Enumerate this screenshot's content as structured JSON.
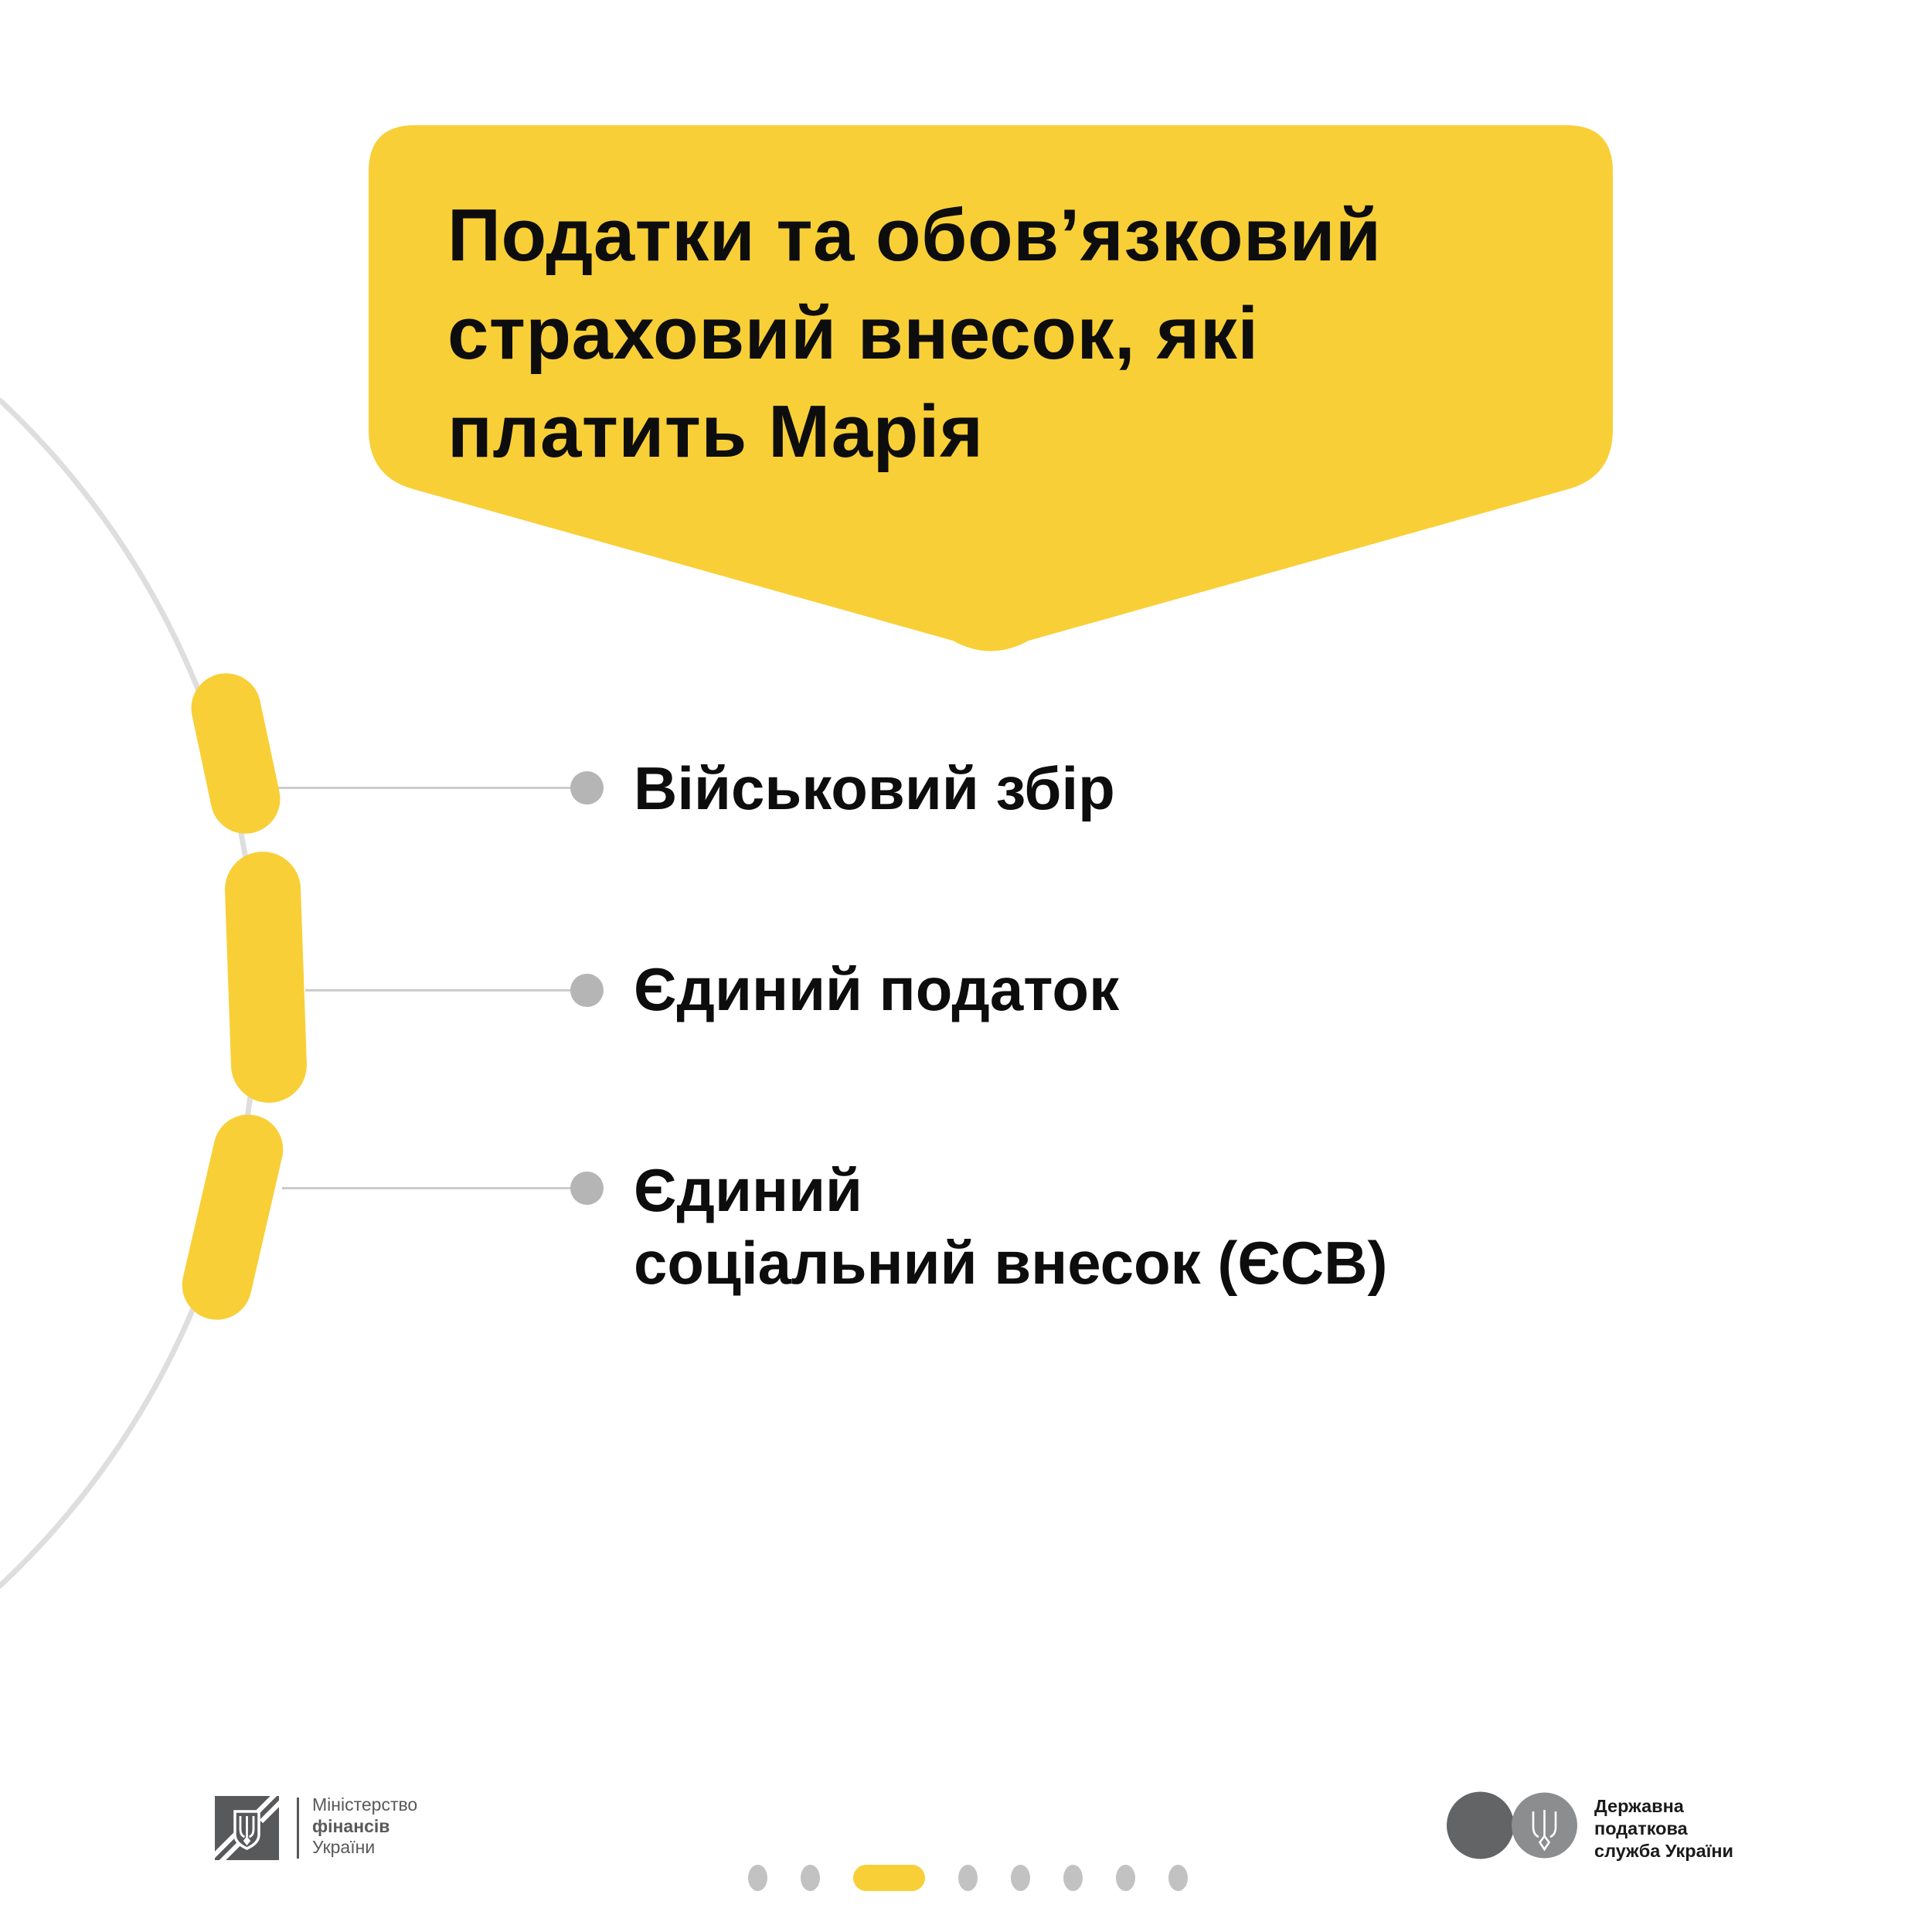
{
  "colors": {
    "yellow": "#F8CF37",
    "black": "#0D0D0D",
    "arc": "#DEDEDE",
    "connector": "#CCCCCC",
    "bullet": "#B5B5B5",
    "page_dot": "#C2C2C2",
    "logo_dark": "#58595B",
    "tax_circle_left": "#636466",
    "tax_circle_right": "#8B8D8F",
    "tax_text": "#1A1A1A"
  },
  "banner": {
    "title": "Податки та обов’язковий\nстраховий внесок, які\nплатить Марія"
  },
  "list": {
    "items": [
      {
        "label": "Військовий збір"
      },
      {
        "label": "Єдиний податок"
      },
      {
        "label": "Єдиний\nсоціальний внесок (ЄСВ)"
      }
    ]
  },
  "footer": {
    "ministry": {
      "line1": "Міністерство",
      "line2": "фінансів",
      "line3": "України"
    },
    "tax": {
      "text": "Державна\nподаткова\nслужба України"
    },
    "pagination": {
      "pages": [
        "dot",
        "dot",
        "active",
        "dot",
        "dot",
        "dot",
        "dot",
        "dot"
      ]
    }
  }
}
